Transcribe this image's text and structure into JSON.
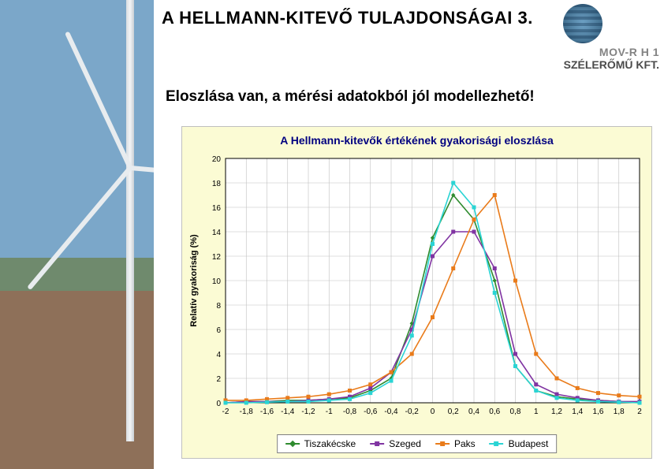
{
  "header": {
    "title": "A HELLMANN-KITEVŐ TULAJDONSÁGAI 3.",
    "company_line1": "MOV-R  H 1",
    "company_line2": "SZÉLERŐMŰ KFT.",
    "subtitle": "Eloszlása van, a mérési adatokból jól modellezhető!"
  },
  "chart": {
    "type": "line",
    "title": "A Hellmann-kitevők értékének gyakorisági eloszlása",
    "title_fontsize": 14,
    "title_color": "#000080",
    "background_color": "#fbfbd4",
    "plot_background": "#ffffff",
    "grid_color": "#c0c0c0",
    "axis_color": "#000000",
    "label_fontsize": 11,
    "tick_fontsize": 10,
    "xlabel": "",
    "ylabel": "Relatív gyakoriság (%)",
    "xlim": [
      -2,
      2
    ],
    "ylim": [
      0,
      20
    ],
    "xtick_step": 0.2,
    "ytick_step": 2,
    "xticks": [
      -2,
      -1.8,
      -1.6,
      -1.4,
      -1.2,
      -1,
      -0.8,
      -0.6,
      -0.4,
      -0.2,
      0,
      0.2,
      0.4,
      0.6,
      0.8,
      1,
      1.2,
      1.4,
      1.6,
      1.8,
      2
    ],
    "yticks": [
      0,
      2,
      4,
      6,
      8,
      10,
      12,
      14,
      16,
      18,
      20
    ],
    "line_width": 1.6,
    "marker_size": 4,
    "series": [
      {
        "name": "Tiszakécske",
        "color": "#2e8b2e",
        "marker": "diamond",
        "x": [
          -2,
          -1.8,
          -1.6,
          -1.4,
          -1.2,
          -1,
          -0.8,
          -0.6,
          -0.4,
          -0.2,
          0,
          0.2,
          0.4,
          0.6,
          0.8,
          1,
          1.2,
          1.4,
          1.6,
          1.8,
          2
        ],
        "y": [
          0,
          0.1,
          0.1,
          0.2,
          0.2,
          0.3,
          0.4,
          1.0,
          2.0,
          6.5,
          13.5,
          17.0,
          15.0,
          10.0,
          3.0,
          1.0,
          0.5,
          0.3,
          0.2,
          0.1,
          0
        ]
      },
      {
        "name": "Szeged",
        "color": "#8034a2",
        "marker": "square",
        "x": [
          -2,
          -1.8,
          -1.6,
          -1.4,
          -1.2,
          -1,
          -0.8,
          -0.6,
          -0.4,
          -0.2,
          0,
          0.2,
          0.4,
          0.6,
          0.8,
          1,
          1.2,
          1.4,
          1.6,
          1.8,
          2
        ],
        "y": [
          0,
          0.1,
          0.1,
          0.1,
          0.2,
          0.3,
          0.5,
          1.2,
          2.5,
          6.0,
          12.0,
          14.0,
          14.0,
          11.0,
          4.0,
          1.5,
          0.7,
          0.4,
          0.2,
          0.1,
          0.1
        ]
      },
      {
        "name": "Paks",
        "color": "#e97b1a",
        "marker": "square",
        "x": [
          -2,
          -1.8,
          -1.6,
          -1.4,
          -1.2,
          -1,
          -0.8,
          -0.6,
          -0.4,
          -0.2,
          0,
          0.2,
          0.4,
          0.6,
          0.8,
          1,
          1.2,
          1.4,
          1.6,
          1.8,
          2
        ],
        "y": [
          0.2,
          0.2,
          0.3,
          0.4,
          0.5,
          0.7,
          1.0,
          1.5,
          2.5,
          4.0,
          7.0,
          11.0,
          15.0,
          17.0,
          10.0,
          4.0,
          2.0,
          1.2,
          0.8,
          0.6,
          0.5
        ]
      },
      {
        "name": "Budapest",
        "color": "#2ad4d4",
        "marker": "square",
        "x": [
          -2,
          -1.8,
          -1.6,
          -1.4,
          -1.2,
          -1,
          -0.8,
          -0.6,
          -0.4,
          -0.2,
          0,
          0.2,
          0.4,
          0.6,
          0.8,
          1,
          1.2,
          1.4,
          1.6,
          1.8,
          2
        ],
        "y": [
          0,
          0,
          0.05,
          0.1,
          0.1,
          0.2,
          0.3,
          0.8,
          1.8,
          5.5,
          13.0,
          18.0,
          16.0,
          9.0,
          3.0,
          1.0,
          0.4,
          0.2,
          0.1,
          0.05,
          0
        ]
      }
    ],
    "legend_position": "bottom-center"
  }
}
